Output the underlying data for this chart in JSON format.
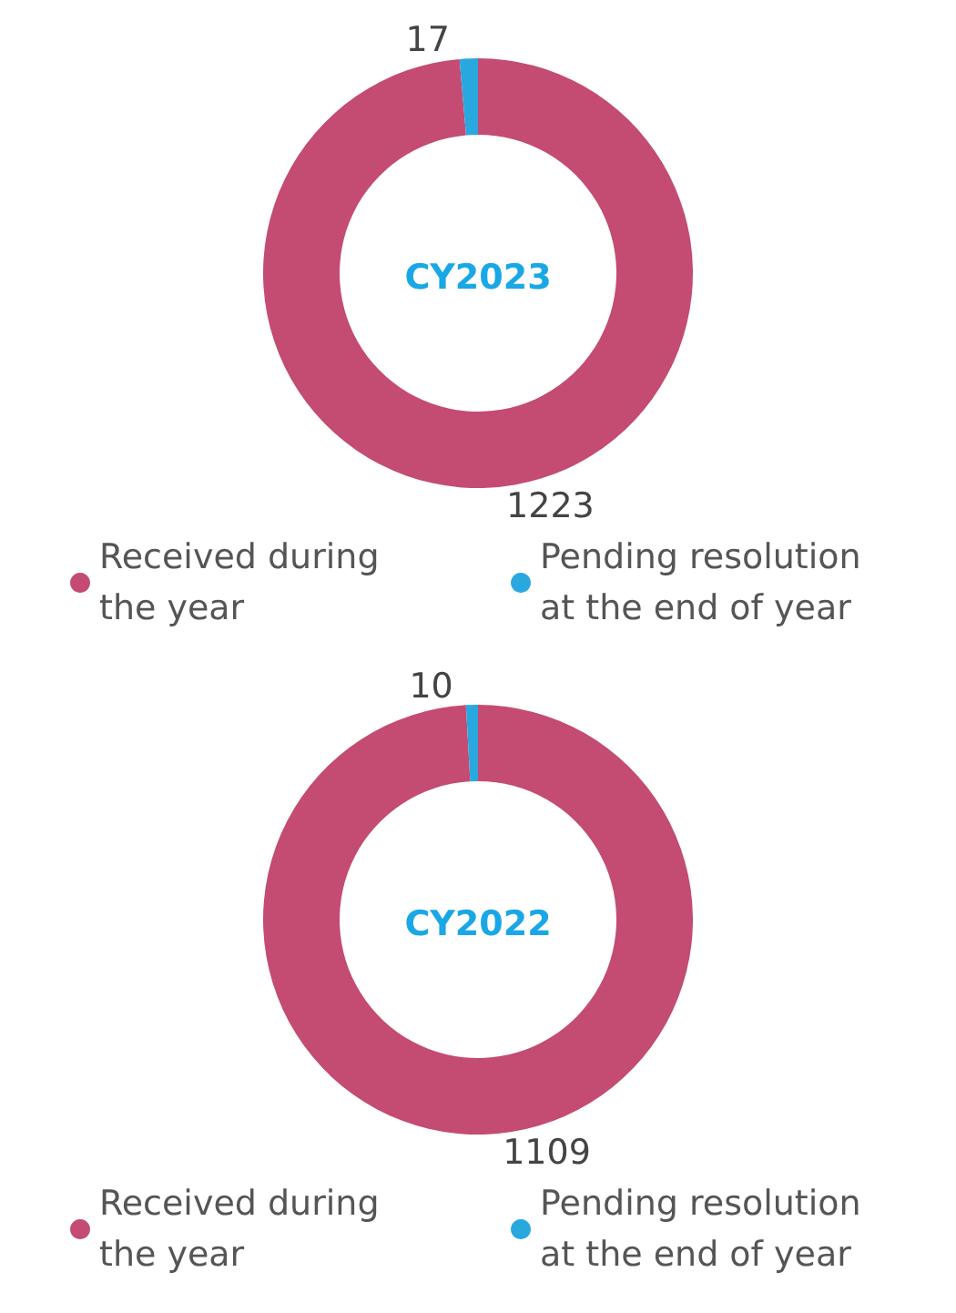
{
  "chart_data": [
    {
      "type": "donut",
      "title": "CY2023",
      "categories": [
        "Received during the year",
        "Pending resolution at the end of year"
      ],
      "values": [
        1223,
        17
      ],
      "colors": [
        "#c44b72",
        "#29a8e0"
      ],
      "data_labels": true,
      "legend": "bottom"
    },
    {
      "type": "donut",
      "title": "CY2022",
      "categories": [
        "Received during the year",
        "Pending resolution at the end of year"
      ],
      "values": [
        1109,
        10
      ],
      "colors": [
        "#c44b72",
        "#29a8e0"
      ],
      "data_labels": true,
      "legend": "bottom"
    }
  ]
}
